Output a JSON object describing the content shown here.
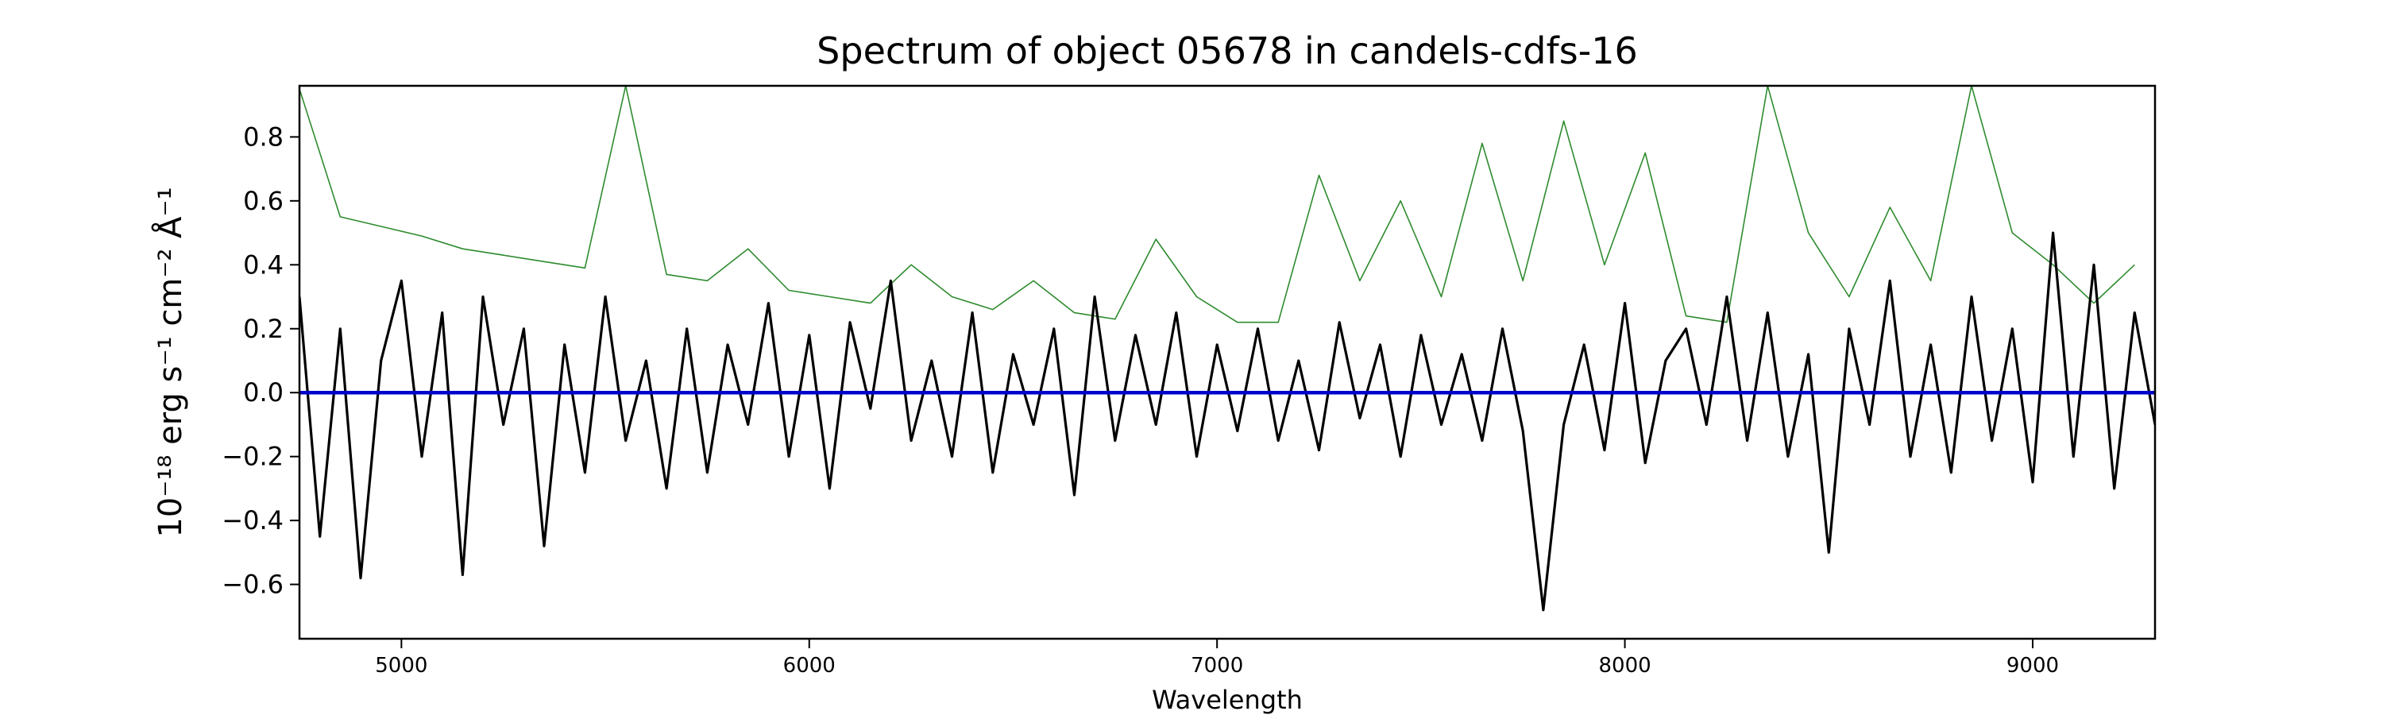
{
  "chart_data": {
    "type": "line",
    "title": "Spectrum of object 05678 in candels-cdfs-16",
    "xlabel": "Wavelength",
    "ylabel": "10⁻¹⁸ erg s⁻¹ cm⁻² Å⁻¹",
    "xlim": [
      4750,
      9300
    ],
    "ylim": [
      -0.77,
      0.96
    ],
    "xticks": [
      5000,
      6000,
      7000,
      8000,
      9000
    ],
    "yticks": [
      {
        "value": -0.6,
        "label": "−0.6"
      },
      {
        "value": -0.4,
        "label": "−0.4"
      },
      {
        "value": -0.2,
        "label": "−0.2"
      },
      {
        "value": 0,
        "label": "0.0"
      },
      0.2,
      0.4,
      0.6,
      0.8
    ],
    "grid": false,
    "series": [
      {
        "color": "#2e8b2e",
        "width": 1.6,
        "x": [
          4750,
          4850,
          4950,
          5050,
          5150,
          5250,
          5350,
          5450,
          5550,
          5650,
          5750,
          5850,
          5950,
          6050,
          6150,
          6250,
          6350,
          6450,
          6550,
          6650,
          6750,
          6850,
          6950,
          7050,
          7150,
          7250,
          7350,
          7450,
          7550,
          7650,
          7750,
          7850,
          7950,
          8050,
          8150,
          8250,
          8350,
          8450,
          8550,
          8650,
          8750,
          8850,
          8950,
          9050,
          9150,
          9250
        ],
        "values": [
          0.95,
          0.55,
          0.52,
          0.49,
          0.45,
          0.43,
          0.41,
          0.39,
          0.96,
          0.37,
          0.35,
          0.45,
          0.32,
          0.3,
          0.28,
          0.4,
          0.3,
          0.26,
          0.35,
          0.25,
          0.23,
          0.48,
          0.3,
          0.22,
          0.22,
          0.68,
          0.35,
          0.6,
          0.3,
          0.78,
          0.35,
          0.85,
          0.4,
          0.75,
          0.24,
          0.22,
          0.96,
          0.5,
          0.3,
          0.58,
          0.35,
          0.96,
          0.5,
          0.4,
          0.28,
          0.4
        ]
      },
      {
        "color": "#000000",
        "width": 3.2,
        "x": [
          4750,
          4800,
          4850,
          4900,
          4950,
          5000,
          5050,
          5100,
          5150,
          5200,
          5250,
          5300,
          5350,
          5400,
          5450,
          5500,
          5550,
          5600,
          5650,
          5700,
          5750,
          5800,
          5850,
          5900,
          5950,
          6000,
          6050,
          6100,
          6150,
          6200,
          6250,
          6300,
          6350,
          6400,
          6450,
          6500,
          6550,
          6600,
          6650,
          6700,
          6750,
          6800,
          6850,
          6900,
          6950,
          7000,
          7050,
          7100,
          7150,
          7200,
          7250,
          7300,
          7350,
          7400,
          7450,
          7500,
          7550,
          7600,
          7650,
          7700,
          7750,
          7800,
          7850,
          7900,
          7950,
          8000,
          8050,
          8100,
          8150,
          8200,
          8250,
          8300,
          8350,
          8400,
          8450,
          8500,
          8550,
          8600,
          8650,
          8700,
          8750,
          8800,
          8850,
          8900,
          8950,
          9000,
          9050,
          9100,
          9150,
          9200,
          9250,
          9300
        ],
        "values": [
          0.3,
          -0.45,
          0.2,
          -0.58,
          0.1,
          0.35,
          -0.2,
          0.25,
          -0.57,
          0.3,
          -0.1,
          0.2,
          -0.48,
          0.15,
          -0.25,
          0.3,
          -0.15,
          0.1,
          -0.3,
          0.2,
          -0.25,
          0.15,
          -0.1,
          0.28,
          -0.2,
          0.18,
          -0.3,
          0.22,
          -0.05,
          0.35,
          -0.15,
          0.1,
          -0.2,
          0.25,
          -0.25,
          0.12,
          -0.1,
          0.2,
          -0.32,
          0.3,
          -0.15,
          0.18,
          -0.1,
          0.25,
          -0.2,
          0.15,
          -0.12,
          0.2,
          -0.15,
          0.1,
          -0.18,
          0.22,
          -0.08,
          0.15,
          -0.2,
          0.18,
          -0.1,
          0.12,
          -0.15,
          0.2,
          -0.12,
          -0.68,
          -0.1,
          0.15,
          -0.18,
          0.28,
          -0.22,
          0.1,
          0.2,
          -0.1,
          0.3,
          -0.15,
          0.25,
          -0.2,
          0.12,
          -0.5,
          0.2,
          -0.1,
          0.35,
          -0.2,
          0.15,
          -0.25,
          0.3,
          -0.15,
          0.2,
          -0.28,
          0.5,
          -0.2,
          0.4,
          -0.3,
          0.25,
          -0.1
        ]
      },
      {
        "color": "#0000cc",
        "width": 4.5,
        "x": [
          4750,
          9300
        ],
        "values": [
          0,
          0
        ]
      }
    ]
  }
}
